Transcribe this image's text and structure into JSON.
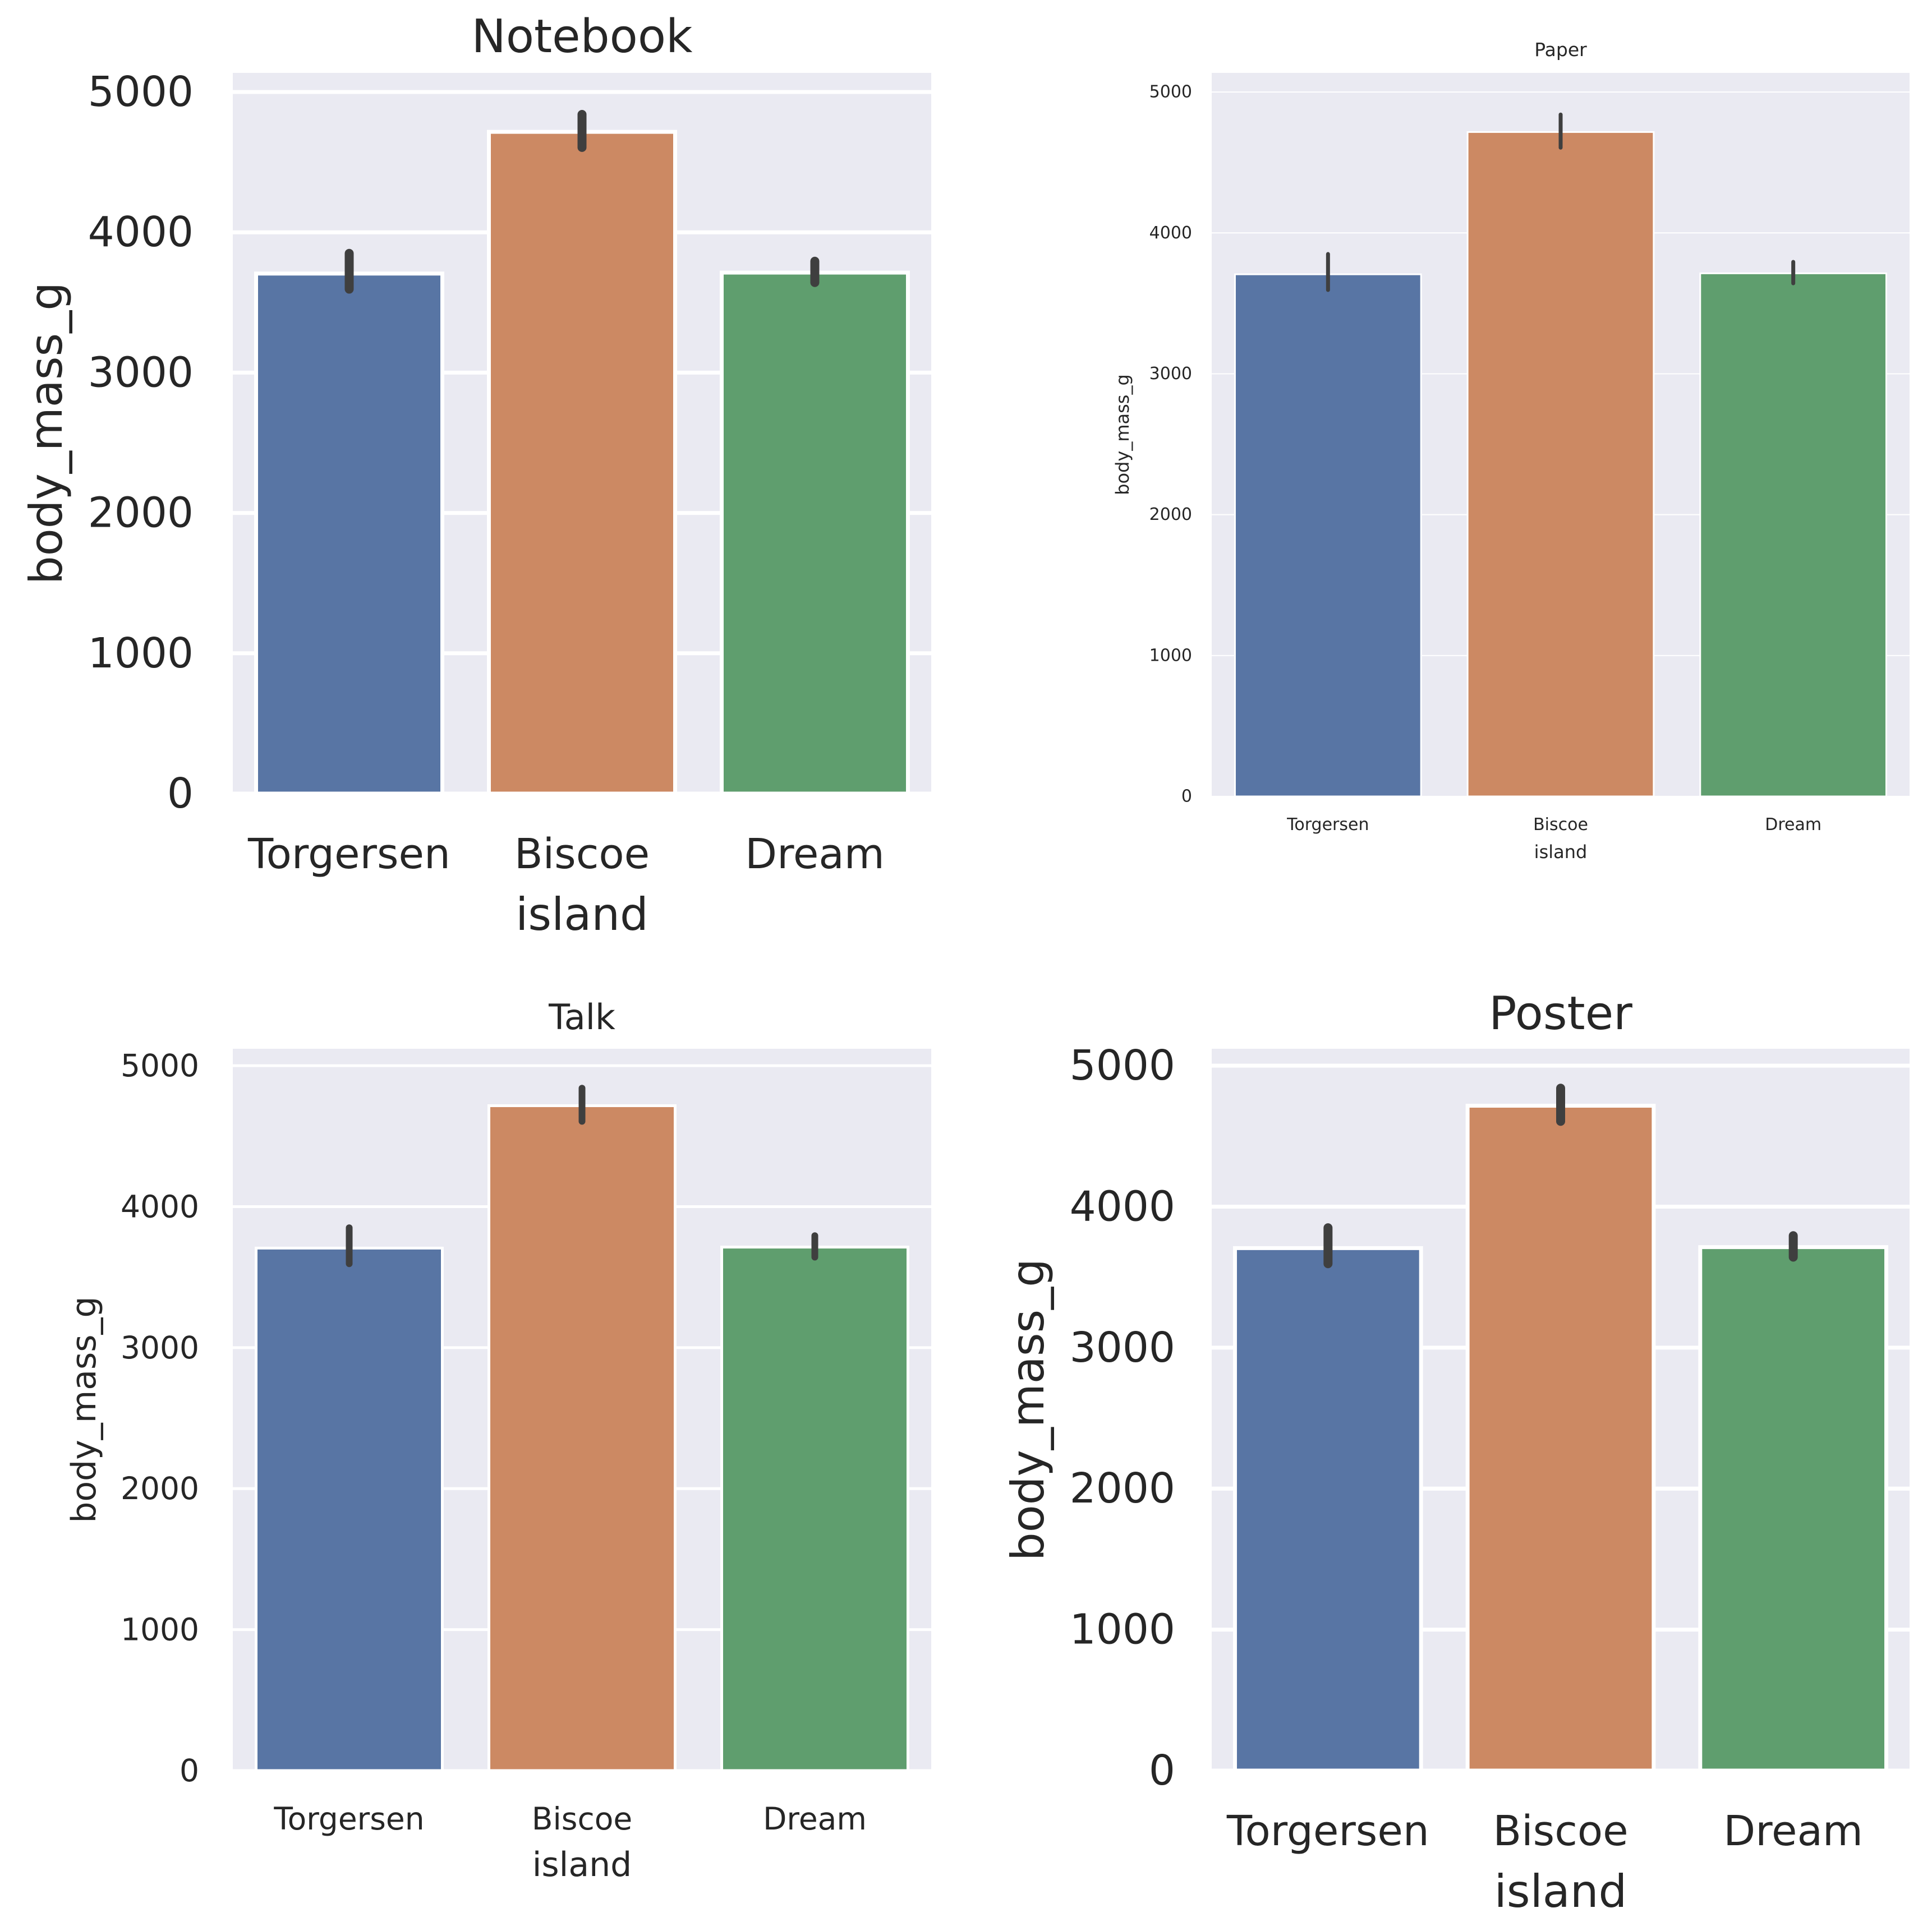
{
  "colors": {
    "axes_background": "#eaeaf2",
    "grid": "#ffffff",
    "text": "#262626",
    "error_bar": "#3f3f3f",
    "Torgersen": "#5875a4",
    "Biscoe": "#cc8963",
    "Dream": "#5f9e6e"
  },
  "chart_data": [
    {
      "type": "bar",
      "title": "Notebook",
      "xlabel": "island",
      "ylabel": "body_mass_g",
      "categories": [
        "Torgersen",
        "Biscoe",
        "Dream"
      ],
      "values": [
        3706,
        4716,
        3713
      ],
      "error_low": [
        3595,
        4605,
        3642
      ],
      "error_high": [
        3850,
        4840,
        3794
      ],
      "yticks": [
        "0",
        "1000",
        "2000",
        "3000",
        "4000",
        "5000"
      ],
      "ylim": [
        0,
        5060
      ],
      "grid": true,
      "legend": "none"
    },
    {
      "type": "bar",
      "title": "Paper",
      "xlabel": "island",
      "ylabel": "body_mass_g",
      "categories": [
        "Torgersen",
        "Biscoe",
        "Dream"
      ],
      "values": [
        3706,
        4716,
        3713
      ],
      "error_low": [
        3595,
        4605,
        3642
      ],
      "error_high": [
        3850,
        4840,
        3794
      ],
      "yticks": [
        "0",
        "1000",
        "2000",
        "3000",
        "4000",
        "5000"
      ],
      "ylim": [
        0,
        5060
      ],
      "grid": true,
      "legend": "none"
    },
    {
      "type": "bar",
      "title": "Talk",
      "xlabel": "island",
      "ylabel": "body_mass_g",
      "categories": [
        "Torgersen",
        "Biscoe",
        "Dream"
      ],
      "values": [
        3706,
        4716,
        3713
      ],
      "error_low": [
        3595,
        4605,
        3642
      ],
      "error_high": [
        3850,
        4840,
        3794
      ],
      "yticks": [
        "0",
        "1000",
        "2000",
        "3000",
        "4000",
        "5000"
      ],
      "ylim": [
        0,
        5060
      ],
      "grid": true,
      "legend": "none"
    },
    {
      "type": "bar",
      "title": "Poster",
      "xlabel": "island",
      "ylabel": "body_mass_g",
      "categories": [
        "Torgersen",
        "Biscoe",
        "Dream"
      ],
      "values": [
        3706,
        4716,
        3713
      ],
      "error_low": [
        3595,
        4605,
        3642
      ],
      "error_high": [
        3850,
        4840,
        3794
      ],
      "yticks": [
        "0",
        "1000",
        "2000",
        "3000",
        "4000",
        "5000"
      ],
      "ylim": [
        0,
        5060
      ],
      "grid": true,
      "legend": "none"
    }
  ]
}
